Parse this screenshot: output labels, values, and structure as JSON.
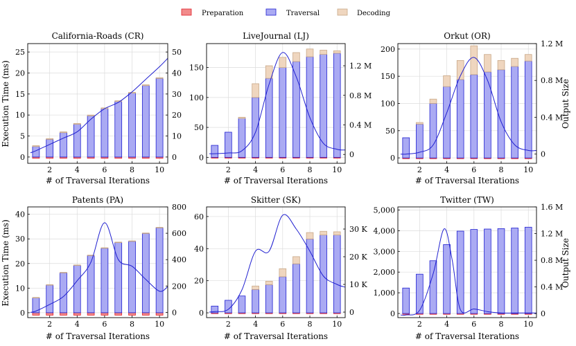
{
  "legend": [
    {
      "name": "Preparation",
      "color": "#f28b8b",
      "stroke": "#e0202a"
    },
    {
      "name": "Traversal",
      "color": "#aaaaf3",
      "stroke": "#2020d0"
    },
    {
      "name": "Decoding",
      "color": "#efd6bf",
      "stroke": "#c8a888"
    }
  ],
  "line_color": "#2020d0",
  "chart_data": [
    {
      "type": "bar",
      "title": "California-Roads (CR)",
      "xlabel": "# of Traversal Iterations",
      "ylabel": "Execution Time (ms)",
      "y2label": "",
      "categories": [
        1,
        2,
        3,
        4,
        5,
        6,
        7,
        8,
        9,
        10
      ],
      "xticks": [
        2,
        4,
        6,
        8,
        10
      ],
      "ylim": [
        -1.5,
        27
      ],
      "yticks": [
        0,
        5,
        10,
        15,
        20,
        25
      ],
      "ytick_labels": [
        "0",
        "5",
        "10",
        "15",
        "20",
        "25"
      ],
      "y2lim": [
        -3,
        54
      ],
      "y2ticks": [
        0,
        10,
        20,
        30,
        40,
        50
      ],
      "y2tick_labels": [
        "0",
        "10",
        "20",
        "30",
        "40",
        "50"
      ],
      "series": [
        {
          "name": "Preparation",
          "values": [
            -0.3,
            -0.3,
            -0.3,
            -0.3,
            -0.3,
            -0.3,
            -0.3,
            -0.3,
            -0.3,
            -0.3
          ]
        },
        {
          "name": "Traversal",
          "values": [
            2.5,
            4.2,
            5.8,
            7.8,
            9.8,
            11.5,
            13.2,
            15.2,
            17.0,
            18.7
          ]
        },
        {
          "name": "Decoding",
          "values": [
            0.2,
            0.2,
            0.2,
            0.2,
            0.2,
            0.2,
            0.2,
            0.2,
            0.2,
            0.2
          ]
        }
      ],
      "output_size": {
        "x": [
          0.6,
          1,
          2,
          3,
          4,
          5,
          6,
          7,
          8,
          9,
          10,
          10.6
        ],
        "y": [
          2,
          3,
          6,
          9,
          12,
          18,
          23,
          26,
          31,
          37,
          43,
          47
        ]
      }
    },
    {
      "type": "bar",
      "title": "LiveJournal (LJ)",
      "xlabel": "# of Traversal Iterations",
      "ylabel": "",
      "y2label": "",
      "categories": [
        1,
        2,
        3,
        4,
        5,
        6,
        7,
        8,
        9,
        10
      ],
      "xticks": [
        2,
        4,
        6,
        8,
        10
      ],
      "ylim": [
        -10,
        190
      ],
      "yticks": [
        0,
        50,
        100,
        150
      ],
      "ytick_labels": [
        "0",
        "50",
        "100",
        "150"
      ],
      "y2lim": [
        -0.12,
        1.5
      ],
      "y2ticks": [
        0,
        0.4,
        0.8,
        1.2
      ],
      "y2tick_labels": [
        "0",
        "0.4 M",
        "0.8 M",
        "1.2 M"
      ],
      "series": [
        {
          "name": "Preparation",
          "values": [
            -1,
            -1,
            -1,
            -1,
            -1,
            -1,
            -1,
            -1,
            -1,
            -1
          ]
        },
        {
          "name": "Traversal",
          "values": [
            20,
            42,
            65,
            100,
            132,
            150,
            160,
            168,
            172,
            174
          ]
        },
        {
          "name": "Decoding",
          "values": [
            0,
            0,
            2,
            23,
            21,
            17,
            15,
            13,
            7,
            4
          ]
        }
      ],
      "output_size": {
        "x": [
          0.6,
          1,
          2,
          3,
          4,
          5,
          6,
          7,
          8,
          9,
          10,
          10.6
        ],
        "y": [
          0.01,
          0.01,
          0.02,
          0.05,
          0.3,
          0.95,
          1.38,
          1.05,
          0.5,
          0.15,
          0.07,
          0.06
        ]
      }
    },
    {
      "type": "bar",
      "title": "Orkut (OR)",
      "xlabel": "# of Traversal Iterations",
      "ylabel": "",
      "y2label": "Output Size",
      "categories": [
        1,
        2,
        3,
        4,
        5,
        6,
        7,
        8,
        9,
        10
      ],
      "xticks": [
        2,
        4,
        6,
        8,
        10
      ],
      "ylim": [
        -10,
        210
      ],
      "yticks": [
        0,
        50,
        100,
        150,
        200
      ],
      "ytick_labels": [
        "0",
        "50",
        "100",
        "150",
        "200"
      ],
      "y2lim": [
        -0.1,
        1.2
      ],
      "y2ticks": [
        0,
        0.4,
        0.8,
        1.2
      ],
      "y2tick_labels": [
        "0",
        "0.4 M",
        "0.8 M",
        "1.2 M"
      ],
      "series": [
        {
          "name": "Preparation",
          "values": [
            -1,
            -1,
            -1,
            -1,
            -1,
            -1,
            -1,
            -1,
            -1,
            -1
          ]
        },
        {
          "name": "Traversal",
          "values": [
            37,
            62,
            100,
            131,
            144,
            153,
            158,
            162,
            168,
            178
          ]
        },
        {
          "name": "Decoding",
          "values": [
            0,
            3,
            8,
            20,
            35,
            53,
            32,
            17,
            15,
            12
          ]
        }
      ],
      "output_size": {
        "x": [
          0.6,
          1,
          2,
          3,
          4,
          5,
          6,
          7,
          8,
          9,
          10,
          10.6
        ],
        "y": [
          0.0,
          0.0,
          0.02,
          0.1,
          0.45,
          0.85,
          1.05,
          0.8,
          0.35,
          0.1,
          0.04,
          0.04
        ]
      }
    },
    {
      "type": "bar",
      "title": "Patents (PA)",
      "xlabel": "# of Traversal Iterations",
      "ylabel": "Execution Time (ms)",
      "y2label": "",
      "categories": [
        1,
        2,
        3,
        4,
        5,
        6,
        7,
        8,
        9,
        10
      ],
      "xticks": [
        2,
        4,
        6,
        8,
        10
      ],
      "ylim": [
        -2,
        43
      ],
      "yticks": [
        0,
        10,
        20,
        30,
        40
      ],
      "ytick_labels": [
        "0",
        "10",
        "20",
        "30",
        "40"
      ],
      "y2lim": [
        -40,
        800
      ],
      "y2ticks": [
        0,
        200,
        400,
        600,
        800
      ],
      "y2tick_labels": [
        "0",
        "200",
        "400",
        "600",
        "800"
      ],
      "series": [
        {
          "name": "Preparation",
          "values": [
            -1,
            -1,
            -1,
            -1,
            -1,
            -1,
            -1,
            -1,
            -1,
            -1
          ]
        },
        {
          "name": "Traversal",
          "values": [
            6.0,
            11.2,
            16.2,
            19.2,
            23.2,
            26.2,
            28.5,
            29.0,
            32.2,
            34.5
          ]
        },
        {
          "name": "Decoding",
          "values": [
            0.2,
            0.2,
            0.2,
            0.2,
            0.2,
            0.2,
            0.2,
            0.2,
            0.2,
            0.2
          ]
        }
      ],
      "output_size": {
        "x": [
          0.6,
          1,
          2,
          3,
          4,
          5,
          6,
          7,
          8,
          9,
          10,
          10.6
        ],
        "y": [
          0,
          10,
          60,
          120,
          240,
          380,
          680,
          400,
          350,
          250,
          160,
          195
        ]
      }
    },
    {
      "type": "bar",
      "title": "Skitter (SK)",
      "xlabel": "# of Traversal Iterations",
      "ylabel": "",
      "y2label": "",
      "categories": [
        1,
        2,
        3,
        4,
        5,
        6,
        7,
        8,
        9,
        10
      ],
      "xticks": [
        2,
        4,
        6,
        8,
        10
      ],
      "ylim": [
        -3,
        66
      ],
      "yticks": [
        0,
        20,
        40,
        60
      ],
      "ytick_labels": [
        "0",
        "20",
        "40",
        "60"
      ],
      "y2lim": [
        -2,
        38
      ],
      "y2ticks": [
        0,
        10,
        20,
        30
      ],
      "y2tick_labels": [
        "0",
        "10 K",
        "20 K",
        "30 K"
      ],
      "series": [
        {
          "name": "Preparation",
          "values": [
            -0.5,
            -0.5,
            -0.5,
            -0.5,
            -0.5,
            -0.5,
            -0.5,
            -0.5,
            -0.5,
            -0.5
          ]
        },
        {
          "name": "Traversal",
          "values": [
            4.2,
            7.8,
            10.5,
            14.5,
            17.5,
            22.5,
            30.5,
            46.0,
            48.5,
            48.5
          ]
        },
        {
          "name": "Decoding",
          "values": [
            0,
            0,
            0,
            2.2,
            2.2,
            5.0,
            4.5,
            4.0,
            2.3,
            2.0
          ]
        }
      ],
      "output_size": {
        "x": [
          0.6,
          1,
          2,
          3,
          4,
          5,
          6,
          7,
          8,
          9,
          10,
          10.6
        ],
        "y": [
          0,
          0.2,
          1,
          8,
          22,
          22,
          35,
          30,
          22,
          13,
          10,
          9
        ]
      }
    },
    {
      "type": "bar",
      "title": "Twitter (TW)",
      "xlabel": "# of Traversal Iterations",
      "ylabel": "",
      "y2label": "Output Size",
      "categories": [
        1,
        2,
        3,
        4,
        5,
        6,
        7,
        8,
        9,
        10
      ],
      "xticks": [
        2,
        4,
        6,
        8,
        10
      ],
      "ylim": [
        -200,
        5150
      ],
      "yticks": [
        0,
        1000,
        2000,
        3000,
        4000,
        5000
      ],
      "ytick_labels": [
        "0",
        "1,000",
        "2,000",
        "3,000",
        "4,000",
        "5,000"
      ],
      "y2lim": [
        -0.06,
        1.6
      ],
      "y2ticks": [
        0,
        0.4,
        0.8,
        1.2,
        1.6
      ],
      "y2tick_labels": [
        "0",
        "0.4 M",
        "0.8 M",
        "1.2 M",
        "1.6 M"
      ],
      "series": [
        {
          "name": "Preparation",
          "values": [
            -20,
            -20,
            -20,
            -20,
            -20,
            -20,
            -20,
            -20,
            -20,
            -20
          ]
        },
        {
          "name": "Traversal",
          "values": [
            1230,
            1900,
            2550,
            3330,
            3980,
            4060,
            4080,
            4100,
            4130,
            4170
          ]
        },
        {
          "name": "Decoding",
          "values": [
            0,
            0,
            0,
            0,
            0,
            0,
            0,
            0,
            0,
            0
          ]
        }
      ],
      "output_size": {
        "x": [
          0.6,
          1,
          2,
          3,
          3.8,
          4.4,
          5,
          6,
          7,
          8,
          9,
          10,
          10.6
        ],
        "y": [
          -0.02,
          -0.02,
          0.05,
          0.6,
          1.27,
          0.8,
          0.06,
          0.07,
          0.03,
          0.01,
          0.01,
          0.01,
          0.01
        ]
      }
    }
  ]
}
